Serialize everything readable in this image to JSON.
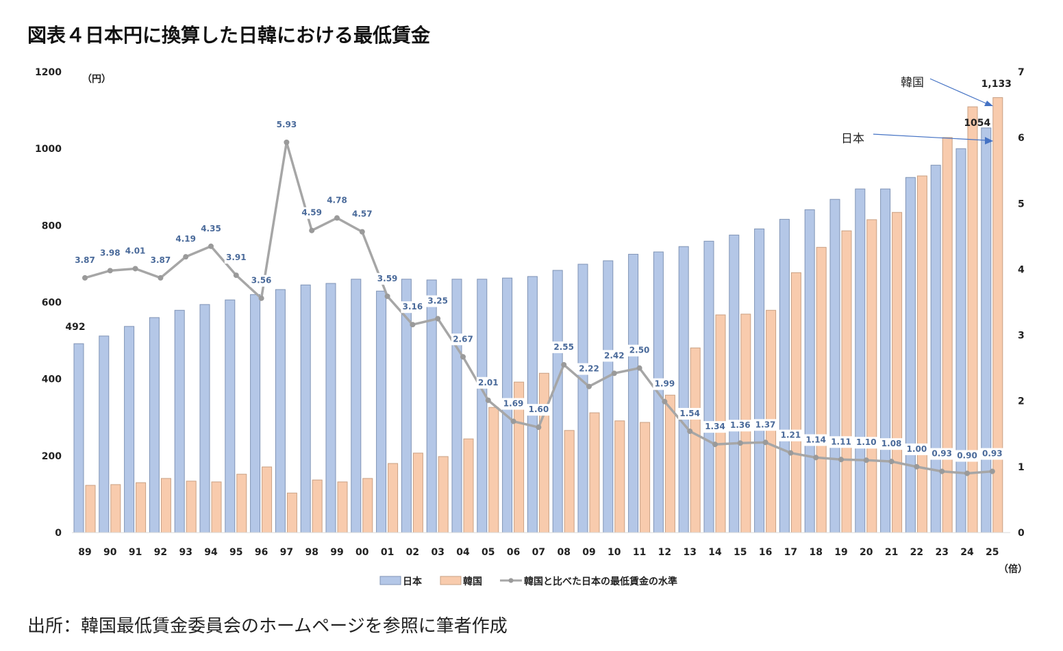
{
  "title": "図表４日本円に換算した日韓における最低賃金",
  "source": "出所：韓国最低賃金委員会のホームページを参照に筆者作成",
  "chart_data": {
    "type": "bar",
    "title": "図表４日本円に換算した日韓における最低賃金",
    "ylabel": "(円)",
    "y2label": "(倍)",
    "ylim": [
      0,
      1200
    ],
    "y2lim": [
      0,
      7
    ],
    "yticks": [
      0,
      200,
      400,
      600,
      800,
      1000,
      1200
    ],
    "y2ticks": [
      0,
      1,
      2,
      3,
      4,
      5,
      6,
      7
    ],
    "categories": [
      "89",
      "90",
      "91",
      "92",
      "93",
      "94",
      "95",
      "96",
      "97",
      "98",
      "99",
      "00",
      "01",
      "02",
      "03",
      "04",
      "05",
      "06",
      "07",
      "08",
      "09",
      "10",
      "11",
      "12",
      "13",
      "14",
      "15",
      "16",
      "17",
      "18",
      "19",
      "20",
      "21",
      "22",
      "23",
      "24",
      "25"
    ],
    "series": [
      {
        "name": "日本",
        "type": "bar",
        "axis": "left",
        "color": "#b4c7e7",
        "values": [
          492,
          512,
          537,
          560,
          579,
          594,
          606,
          620,
          633,
          645,
          649,
          660,
          629,
          660,
          658,
          660,
          660,
          663,
          667,
          683,
          699,
          708,
          725,
          731,
          745,
          759,
          775,
          791,
          816,
          841,
          868,
          895,
          895,
          925,
          957,
          1000,
          1054
        ]
      },
      {
        "name": "韓国",
        "type": "bar",
        "axis": "left",
        "color": "#f8cbad",
        "values": [
          123,
          125,
          130,
          141,
          134,
          132,
          152,
          171,
          103,
          137,
          132,
          141,
          180,
          207,
          198,
          244,
          326,
          392,
          415,
          266,
          312,
          291,
          287,
          358,
          481,
          567,
          569,
          579,
          677,
          743,
          786,
          815,
          834,
          929,
          1029,
          1109,
          1133
        ]
      },
      {
        "name": "韓国と比べた日本の最低賃金の水準",
        "type": "line",
        "axis": "right",
        "color": "#a6a6a6",
        "values": [
          3.87,
          3.98,
          4.01,
          3.87,
          4.19,
          4.35,
          3.91,
          3.56,
          5.93,
          4.59,
          4.78,
          4.57,
          3.59,
          3.16,
          3.25,
          2.67,
          2.01,
          1.69,
          1.6,
          2.55,
          2.22,
          2.42,
          2.5,
          1.99,
          1.54,
          1.34,
          1.36,
          1.37,
          1.21,
          1.14,
          1.11,
          1.1,
          1.08,
          1.0,
          0.93,
          0.9,
          0.93
        ]
      }
    ],
    "data_labels": {
      "first_japan": "492",
      "last_japan": "1054",
      "last_korea": "1,133"
    },
    "annotations": [
      {
        "text": "韓国",
        "target": "25 韓国"
      },
      {
        "text": "日本",
        "target": "25 日本"
      }
    ],
    "legend": "bottom"
  }
}
